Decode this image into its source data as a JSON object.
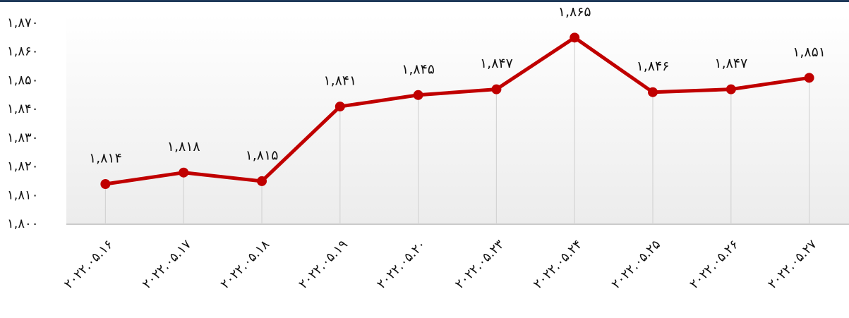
{
  "chart_data": {
    "type": "line",
    "categories": [
      "۲۰۲۲.۰۵.۱۶",
      "۲۰۲۲.۰۵.۱۷",
      "۲۰۲۲.۰۵.۱۸",
      "۲۰۲۲.۰۵.۱۹",
      "۲۰۲۲.۰۵.۲۰",
      "۲۰۲۲.۰۵.۲۳",
      "۲۰۲۲.۰۵.۲۴",
      "۲۰۲۲.۰۵.۲۵",
      "۲۰۲۲.۰۵.۲۶",
      "۲۰۲۲.۰۵.۲۷"
    ],
    "values": [
      1814,
      1818,
      1815,
      1841,
      1845,
      1847,
      1865,
      1846,
      1847,
      1851
    ],
    "value_labels": [
      "۱,۸۱۴",
      "۱,۸۱۸",
      "۱,۸۱۵",
      "۱,۸۴۱",
      "۱,۸۴۵",
      "۱,۸۴۷",
      "۱,۸۶۵",
      "۱,۸۴۶",
      "۱,۸۴۷",
      "۱,۸۵۱"
    ],
    "color": "#c00000",
    "ylim": [
      1800,
      1870
    ],
    "yticks": [
      {
        "value": 1800,
        "label": "۱,۸۰۰"
      },
      {
        "value": 1810,
        "label": "۱,۸۱۰"
      },
      {
        "value": 1820,
        "label": "۱,۸۲۰"
      },
      {
        "value": 1830,
        "label": "۱,۸۳۰"
      },
      {
        "value": 1840,
        "label": "۱,۸۴۰"
      },
      {
        "value": 1850,
        "label": "۱,۸۵۰"
      },
      {
        "value": 1860,
        "label": "۱,۸۶۰"
      },
      {
        "value": 1870,
        "label": "۱,۸۷۰"
      }
    ]
  }
}
